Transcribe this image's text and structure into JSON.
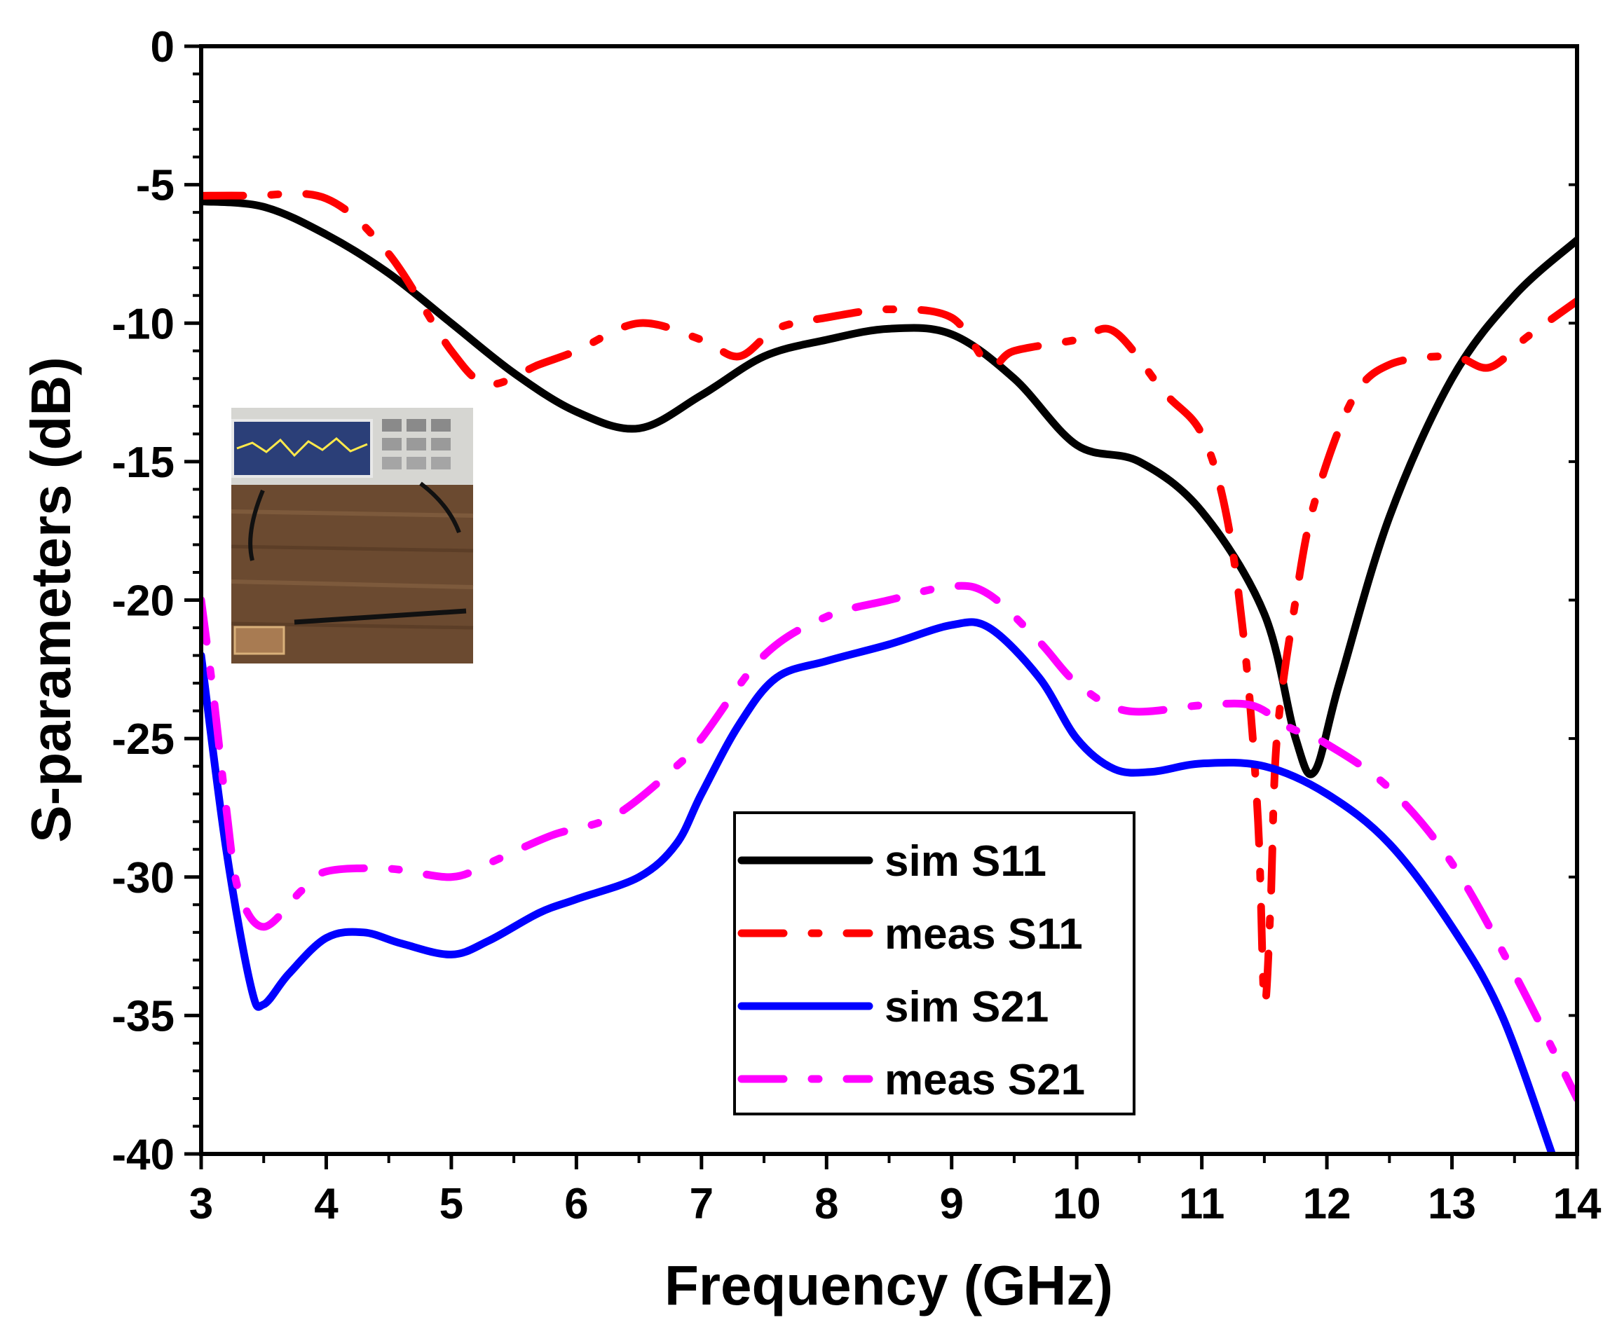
{
  "chart_data": {
    "type": "line",
    "title": "",
    "xlabel": "Frequency (GHz)",
    "ylabel": "S-parameters (dB)",
    "xlim": [
      3,
      14
    ],
    "ylim": [
      -40,
      0
    ],
    "x_ticks": [
      3,
      4,
      5,
      6,
      7,
      8,
      9,
      10,
      11,
      12,
      13,
      14
    ],
    "y_ticks": [
      0,
      -5,
      -10,
      -15,
      -20,
      -25,
      -30,
      -35,
      -40
    ],
    "grid": false,
    "legend_position": "bottom-center",
    "inset": "photo of vector network analyzer measurement setup",
    "series": [
      {
        "name": "sim S11",
        "color": "#000000",
        "style": "solid",
        "points": [
          [
            3.0,
            -5.6
          ],
          [
            3.5,
            -5.8
          ],
          [
            4.0,
            -6.8
          ],
          [
            4.5,
            -8.2
          ],
          [
            5.0,
            -10.0
          ],
          [
            5.5,
            -11.8
          ],
          [
            6.0,
            -13.2
          ],
          [
            6.5,
            -13.8
          ],
          [
            7.0,
            -12.6
          ],
          [
            7.5,
            -11.2
          ],
          [
            8.0,
            -10.6
          ],
          [
            8.5,
            -10.2
          ],
          [
            9.0,
            -10.4
          ],
          [
            9.5,
            -12.0
          ],
          [
            10.0,
            -14.4
          ],
          [
            10.5,
            -15.0
          ],
          [
            11.0,
            -16.8
          ],
          [
            11.5,
            -20.5
          ],
          [
            11.75,
            -25.0
          ],
          [
            11.9,
            -26.2
          ],
          [
            12.1,
            -23.0
          ],
          [
            12.5,
            -17.0
          ],
          [
            13.0,
            -12.0
          ],
          [
            13.5,
            -9.0
          ],
          [
            14.0,
            -7.0
          ]
        ]
      },
      {
        "name": "meas S11",
        "color": "#ff0000",
        "style": "dash-dot",
        "points": [
          [
            3.0,
            -5.4
          ],
          [
            3.4,
            -5.4
          ],
          [
            4.0,
            -5.5
          ],
          [
            4.5,
            -7.5
          ],
          [
            5.0,
            -11.0
          ],
          [
            5.3,
            -12.2
          ],
          [
            5.7,
            -11.5
          ],
          [
            6.0,
            -11.0
          ],
          [
            6.5,
            -10.0
          ],
          [
            7.0,
            -10.6
          ],
          [
            7.3,
            -11.2
          ],
          [
            7.6,
            -10.2
          ],
          [
            8.0,
            -9.8
          ],
          [
            8.5,
            -9.5
          ],
          [
            9.0,
            -9.8
          ],
          [
            9.3,
            -11.5
          ],
          [
            9.5,
            -11.0
          ],
          [
            10.0,
            -10.6
          ],
          [
            10.3,
            -10.3
          ],
          [
            10.7,
            -12.5
          ],
          [
            11.0,
            -14.0
          ],
          [
            11.2,
            -17.0
          ],
          [
            11.35,
            -22.0
          ],
          [
            11.45,
            -28.0
          ],
          [
            11.5,
            -34.5
          ],
          [
            11.55,
            -31.0
          ],
          [
            11.6,
            -25.0
          ],
          [
            11.75,
            -20.0
          ],
          [
            11.9,
            -16.5
          ],
          [
            12.2,
            -12.8
          ],
          [
            12.5,
            -11.5
          ],
          [
            13.0,
            -11.2
          ],
          [
            13.3,
            -11.6
          ],
          [
            13.6,
            -10.5
          ],
          [
            14.0,
            -9.2
          ]
        ]
      },
      {
        "name": "sim S21",
        "color": "#0000ff",
        "style": "solid",
        "points": [
          [
            3.0,
            -22.0
          ],
          [
            3.2,
            -29.0
          ],
          [
            3.4,
            -34.0
          ],
          [
            3.5,
            -34.6
          ],
          [
            3.7,
            -33.5
          ],
          [
            4.0,
            -32.2
          ],
          [
            4.3,
            -32.0
          ],
          [
            4.6,
            -32.4
          ],
          [
            5.0,
            -32.8
          ],
          [
            5.3,
            -32.3
          ],
          [
            5.7,
            -31.3
          ],
          [
            6.0,
            -30.8
          ],
          [
            6.5,
            -30.0
          ],
          [
            6.8,
            -28.8
          ],
          [
            7.0,
            -27.0
          ],
          [
            7.3,
            -24.5
          ],
          [
            7.6,
            -22.8
          ],
          [
            8.0,
            -22.2
          ],
          [
            8.5,
            -21.6
          ],
          [
            9.0,
            -20.9
          ],
          [
            9.3,
            -21.0
          ],
          [
            9.7,
            -22.8
          ],
          [
            10.0,
            -25.0
          ],
          [
            10.3,
            -26.1
          ],
          [
            10.6,
            -26.2
          ],
          [
            11.0,
            -25.9
          ],
          [
            11.5,
            -26.0
          ],
          [
            12.0,
            -27.0
          ],
          [
            12.5,
            -28.8
          ],
          [
            13.0,
            -31.8
          ],
          [
            13.4,
            -35.0
          ],
          [
            13.8,
            -40.0
          ]
        ]
      },
      {
        "name": "meas S21",
        "color": "#ff00ff",
        "style": "dash-dot",
        "points": [
          [
            3.0,
            -20.0
          ],
          [
            3.1,
            -23.5
          ],
          [
            3.2,
            -27.5
          ],
          [
            3.3,
            -30.5
          ],
          [
            3.5,
            -31.8
          ],
          [
            3.8,
            -30.5
          ],
          [
            4.0,
            -29.8
          ],
          [
            4.5,
            -29.7
          ],
          [
            5.0,
            -30.0
          ],
          [
            5.3,
            -29.5
          ],
          [
            5.8,
            -28.5
          ],
          [
            6.3,
            -27.8
          ],
          [
            6.8,
            -26.0
          ],
          [
            7.0,
            -25.0
          ],
          [
            7.5,
            -22.0
          ],
          [
            8.0,
            -20.6
          ],
          [
            8.5,
            -20.0
          ],
          [
            9.0,
            -19.5
          ],
          [
            9.3,
            -19.8
          ],
          [
            9.7,
            -21.5
          ],
          [
            10.0,
            -23.0
          ],
          [
            10.4,
            -24.0
          ],
          [
            11.0,
            -23.8
          ],
          [
            11.4,
            -23.8
          ],
          [
            11.7,
            -24.6
          ],
          [
            12.0,
            -25.2
          ],
          [
            12.5,
            -26.8
          ],
          [
            13.0,
            -29.5
          ],
          [
            13.5,
            -33.5
          ],
          [
            14.0,
            -38.0
          ]
        ]
      }
    ]
  }
}
